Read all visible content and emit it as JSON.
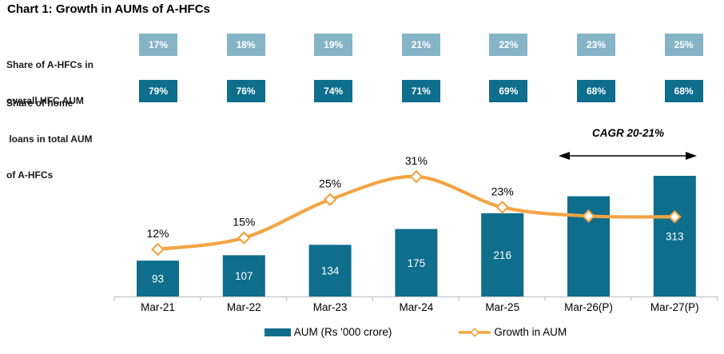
{
  "title": "Chart 1: Growth in AUMs of A-HFCs",
  "header_rows": [
    {
      "name": "Share of A-HFCs in overall HFC AUM",
      "label_lines": [
        "Share of A-HFCs in",
        "overall HFC AUM"
      ],
      "values": [
        "17%",
        "18%",
        "19%",
        "21%",
        "22%",
        "23%",
        "25%"
      ],
      "color": "#85b4c6"
    },
    {
      "name": "Share of home loans in total AUM of A-HFCs",
      "label_lines": [
        "Share of home",
        " loans in total AUM",
        "of A-HFCs"
      ],
      "values": [
        "79%",
        "76%",
        "74%",
        "71%",
        "69%",
        "68%",
        "68%"
      ],
      "color": "#0e6e8c"
    }
  ],
  "annotation": {
    "cagr_label": "CAGR 20-21%",
    "arrow_span_categories": [
      "Mar-26(P)",
      "Mar-27(P)"
    ]
  },
  "chart_data": {
    "type": "bar",
    "subtype": "bar+line combo",
    "categories": [
      "Mar-21",
      "Mar-22",
      "Mar-23",
      "Mar-24",
      "Mar-25",
      "Mar-26(P)",
      "Mar-27(P)"
    ],
    "series": [
      {
        "name": "AUM (Rs '000 crore)",
        "type": "bar",
        "values": [
          93,
          107,
          134,
          175,
          216,
          260,
          313
        ],
        "value_labels": [
          "93",
          "107",
          "134",
          "175",
          "216",
          "",
          "313"
        ],
        "color": "#0e6e8c"
      },
      {
        "name": "Growth in AUM",
        "type": "line",
        "values": [
          12,
          15,
          25,
          31,
          23,
          20.7,
          20.5
        ],
        "value_labels": [
          "12%",
          "15%",
          "25%",
          "31%",
          "23%",
          "",
          ""
        ],
        "color": "#f2a444",
        "marker": "diamond-white-fill"
      }
    ],
    "ylim_bar": [
      0,
      350
    ],
    "ylim_growth_pct": [
      0,
      35
    ],
    "grid": "off",
    "legend_position": "bottom",
    "axis_color": "#c6c6c6"
  },
  "legend": {
    "bar_label": "AUM (Rs '000 crore)",
    "line_label": "Growth in AUM"
  }
}
